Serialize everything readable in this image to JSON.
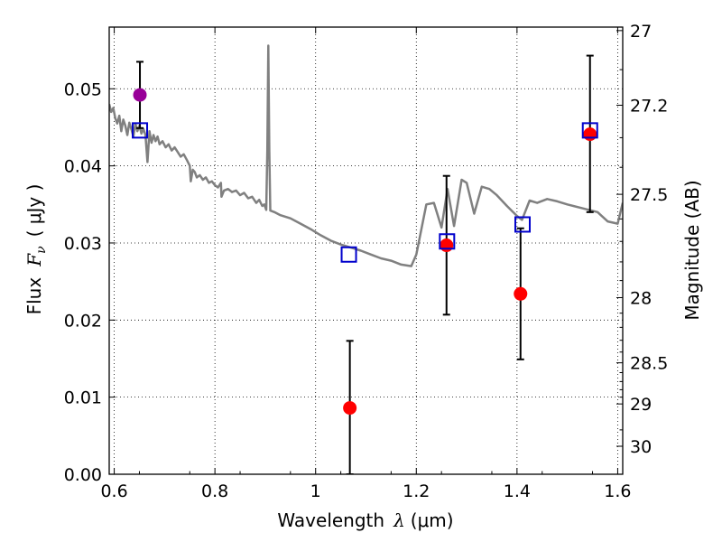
{
  "chart_data": {
    "type": "scatter",
    "xlabel_text": "Wavelength",
    "xlabel_symbol": "λ",
    "xlabel_unit": "(μm)",
    "ylabel_text": "Flux",
    "ylabel_symbol": "F",
    "ylabel_sub": "ν",
    "ylabel_unit": "( μJy )",
    "y2label": "Magnitude (AB)",
    "xlim": [
      0.59,
      1.61
    ],
    "ylim": [
      0.0,
      0.058
    ],
    "grid": true,
    "xticks": [
      0.6,
      0.8,
      1.0,
      1.2,
      1.4,
      1.6
    ],
    "xtick_labels": [
      "0.6",
      "0.8",
      "1",
      "1.2",
      "1.4",
      "1.6"
    ],
    "yticks": [
      0.0,
      0.01,
      0.02,
      0.03,
      0.04,
      0.05
    ],
    "ytick_labels": [
      "0.00",
      "0.01",
      "0.02",
      "0.03",
      "0.04",
      "0.05"
    ],
    "mag_ticks": [
      27,
      27.2,
      27.5,
      28,
      28.5,
      29,
      30
    ],
    "mag_tick_labels": [
      "27",
      "27.2",
      "27.5",
      "28",
      "28.5",
      "29",
      "30"
    ],
    "colors": {
      "model": "#808080",
      "observed": "#ff0000",
      "magenta_point": "#990099",
      "synthetic": "#0000cc",
      "errorbar": "#000000"
    },
    "model_spectrum": {
      "x": [
        0.59,
        0.594,
        0.598,
        0.602,
        0.606,
        0.61,
        0.614,
        0.618,
        0.622,
        0.626,
        0.63,
        0.634,
        0.638,
        0.642,
        0.646,
        0.65,
        0.654,
        0.658,
        0.662,
        0.666,
        0.67,
        0.674,
        0.678,
        0.682,
        0.686,
        0.69,
        0.696,
        0.702,
        0.708,
        0.714,
        0.72,
        0.726,
        0.732,
        0.738,
        0.744,
        0.75,
        0.752,
        0.756,
        0.76,
        0.764,
        0.77,
        0.776,
        0.782,
        0.788,
        0.794,
        0.8,
        0.806,
        0.812,
        0.813,
        0.818,
        0.826,
        0.834,
        0.842,
        0.85,
        0.858,
        0.866,
        0.874,
        0.882,
        0.888,
        0.894,
        0.898,
        0.902,
        0.904,
        0.906,
        0.908,
        0.91,
        0.918,
        0.93,
        0.95,
        0.97,
        0.99,
        1.01,
        1.03,
        1.05,
        1.07,
        1.09,
        1.11,
        1.13,
        1.15,
        1.17,
        1.19,
        1.2,
        1.22,
        1.235,
        1.25,
        1.262,
        1.275,
        1.29,
        1.3,
        1.315,
        1.33,
        1.345,
        1.36,
        1.38,
        1.4,
        1.41,
        1.425,
        1.44,
        1.46,
        1.48,
        1.5,
        1.53,
        1.56,
        1.58,
        1.6,
        1.61
      ],
      "y": [
        0.048,
        0.047,
        0.0475,
        0.0462,
        0.0455,
        0.0465,
        0.0445,
        0.046,
        0.0452,
        0.044,
        0.0456,
        0.0448,
        0.0438,
        0.0455,
        0.0445,
        0.0452,
        0.0442,
        0.0448,
        0.044,
        0.0405,
        0.0445,
        0.043,
        0.044,
        0.0432,
        0.0438,
        0.0428,
        0.0432,
        0.0424,
        0.0428,
        0.042,
        0.0424,
        0.0418,
        0.0412,
        0.0415,
        0.0408,
        0.04,
        0.038,
        0.0395,
        0.0392,
        0.0385,
        0.0388,
        0.0382,
        0.0385,
        0.0378,
        0.038,
        0.0375,
        0.0372,
        0.0378,
        0.036,
        0.0368,
        0.037,
        0.0366,
        0.0368,
        0.0362,
        0.0365,
        0.0358,
        0.036,
        0.0352,
        0.0356,
        0.0348,
        0.035,
        0.0343,
        0.042,
        0.0556,
        0.042,
        0.0342,
        0.034,
        0.0336,
        0.0332,
        0.0325,
        0.0318,
        0.031,
        0.0303,
        0.0298,
        0.0294,
        0.029,
        0.0285,
        0.028,
        0.0277,
        0.0272,
        0.027,
        0.0285,
        0.035,
        0.0352,
        0.032,
        0.037,
        0.0322,
        0.0382,
        0.0378,
        0.0338,
        0.0373,
        0.037,
        0.0362,
        0.0348,
        0.0335,
        0.033,
        0.0355,
        0.0352,
        0.0357,
        0.0354,
        0.035,
        0.0345,
        0.034,
        0.0328,
        0.0325,
        0.0352
      ]
    },
    "observed_points": [
      {
        "x": 0.651,
        "y": 0.0492,
        "err_low": 0.0043,
        "err_high": 0.0043
      },
      {
        "x": 1.068,
        "y": 0.0086,
        "err_low": 0.0086,
        "err_high": 0.0087
      },
      {
        "x": 1.26,
        "y": 0.0297,
        "err_low": 0.009,
        "err_high": 0.009
      },
      {
        "x": 1.407,
        "y": 0.0234,
        "err_low": 0.0085,
        "err_high": 0.0085
      },
      {
        "x": 1.545,
        "y": 0.0441,
        "err_low": 0.0101,
        "err_high": 0.0102
      }
    ],
    "synthetic_points": [
      {
        "x": 0.651,
        "y": 0.0446
      },
      {
        "x": 1.066,
        "y": 0.0285
      },
      {
        "x": 1.261,
        "y": 0.0302
      },
      {
        "x": 1.411,
        "y": 0.0324
      },
      {
        "x": 1.545,
        "y": 0.0446
      }
    ]
  }
}
